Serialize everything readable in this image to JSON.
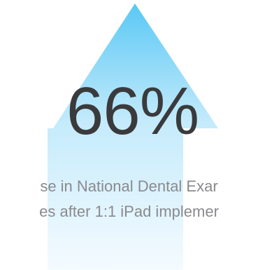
{
  "headline": {
    "value": "66%"
  },
  "caption": {
    "line1": "se in National Dental Exar",
    "line2": "es after 1:1 iPad implemer"
  },
  "colors": {
    "arrow_top": "#5ac8f5",
    "arrow_mid": "#c5ebfb",
    "arrow_bottom": "#f2faff",
    "value_text": "#3a3a3c",
    "caption_text": "#8a8a8e"
  },
  "icons": {
    "arrow": "up-arrow-icon"
  }
}
